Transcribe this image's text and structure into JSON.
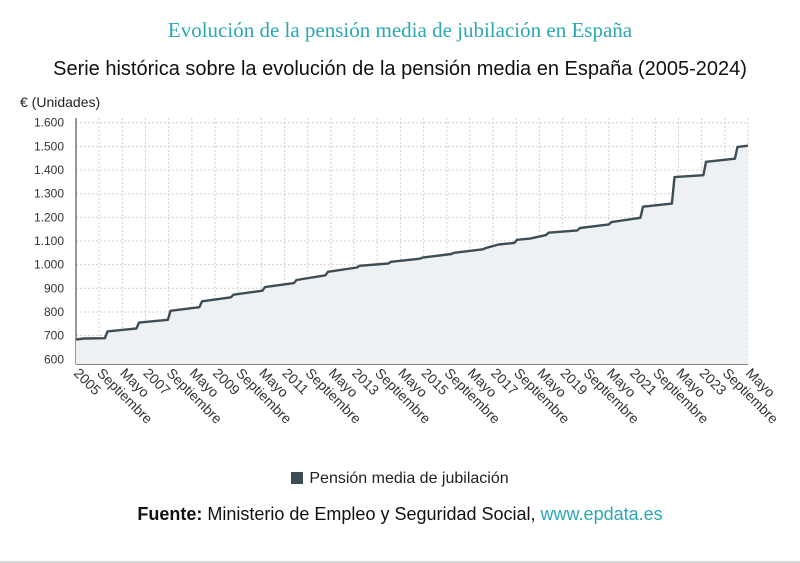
{
  "header": {
    "title": "Evolución de la pensión media de jubilación en España",
    "subtitle": "Serie histórica sobre la evolución de la pensión media en España (2005-2024)"
  },
  "colors": {
    "title": "#2aa7b3",
    "series": "#3d4d56",
    "area": "#eef1f3",
    "grid": "#d0d0d0"
  },
  "chart_data": {
    "type": "line",
    "title": "Serie histórica sobre la evolución de la pensión media en España (2005-2024)",
    "ylabel": "€ (Unidades)",
    "ylim": [
      580,
      1620
    ],
    "yticks": [
      600,
      700,
      800,
      900,
      1000,
      1100,
      1200,
      1300,
      1400,
      1500,
      1600
    ],
    "ytick_labels": [
      "600",
      "700",
      "800",
      "900",
      "1.000",
      "1.100",
      "1.200",
      "1.300",
      "1.400",
      "1.500",
      "1.600"
    ],
    "xtick_labels": [
      "2005",
      "Septiembre",
      "Mayo",
      "2007",
      "Septiembre",
      "Mayo",
      "2009",
      "Septiembre",
      "Mayo",
      "2011",
      "Septiembre",
      "Mayo",
      "2013",
      "Septiembre",
      "Mayo",
      "2015",
      "Septiembre",
      "Mayo",
      "2017",
      "Septiembre",
      "Mayo",
      "2019",
      "Septiembre",
      "Mayo",
      "2021",
      "Septiembre",
      "Mayo",
      "2023",
      "Septiembre",
      "Mayo"
    ],
    "grid": true,
    "legend": "bottom",
    "series": [
      {
        "name": "Pensión media de jubilación",
        "points": [
          [
            "2005-01",
            683
          ],
          [
            "2005-04",
            688
          ],
          [
            "2005-12",
            689
          ],
          [
            "2006-01",
            718
          ],
          [
            "2006-12",
            730
          ],
          [
            "2007-01",
            755
          ],
          [
            "2007-12",
            767
          ],
          [
            "2008-01",
            805
          ],
          [
            "2008-12",
            820
          ],
          [
            "2009-01",
            845
          ],
          [
            "2009-12",
            862
          ],
          [
            "2010-01",
            873
          ],
          [
            "2010-12",
            890
          ],
          [
            "2011-01",
            905
          ],
          [
            "2011-12",
            922
          ],
          [
            "2012-01",
            935
          ],
          [
            "2012-12",
            955
          ],
          [
            "2013-01",
            970
          ],
          [
            "2013-12",
            988
          ],
          [
            "2014-01",
            995
          ],
          [
            "2014-12",
            1005
          ],
          [
            "2015-01",
            1012
          ],
          [
            "2015-12",
            1025
          ],
          [
            "2016-01",
            1030
          ],
          [
            "2016-12",
            1045
          ],
          [
            "2017-01",
            1050
          ],
          [
            "2017-12",
            1065
          ],
          [
            "2018-01",
            1070
          ],
          [
            "2018-06",
            1085
          ],
          [
            "2018-12",
            1092
          ],
          [
            "2019-01",
            1105
          ],
          [
            "2019-06",
            1110
          ],
          [
            "2019-12",
            1125
          ],
          [
            "2020-01",
            1135
          ],
          [
            "2020-12",
            1145
          ],
          [
            "2021-01",
            1155
          ],
          [
            "2021-12",
            1170
          ],
          [
            "2022-01",
            1180
          ],
          [
            "2022-12",
            1198
          ],
          [
            "2023-01",
            1245
          ],
          [
            "2023-12",
            1258
          ],
          [
            "2024-01",
            1370
          ],
          [
            "2024-12",
            1378
          ],
          [
            "2025-01",
            1435
          ],
          [
            "2025-12",
            1448
          ],
          [
            "2026-01",
            1498
          ],
          [
            "2026-05",
            1503
          ]
        ]
      }
    ]
  },
  "legend": {
    "label": "Pensión media de jubilación"
  },
  "source": {
    "label": "Fuente:",
    "text": " Ministerio de Empleo y Seguridad Social, ",
    "link": "www.epdata.es"
  }
}
